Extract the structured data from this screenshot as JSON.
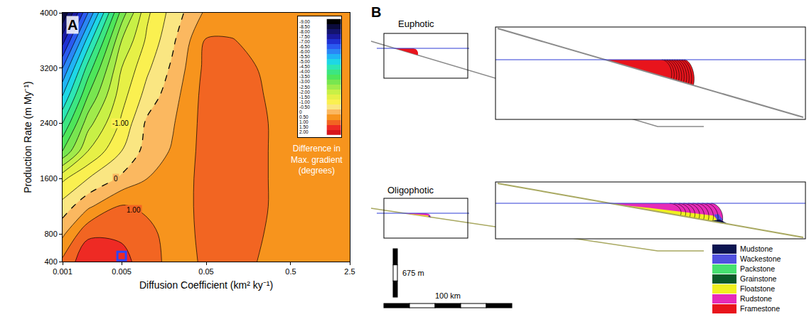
{
  "chart_data": {
    "type": "contour",
    "panel_label": "A",
    "x_label": "Diffusion Coefficient (km² ky⁻¹)",
    "y_label": "Production Rate (m My⁻¹)",
    "log": "x",
    "grid": false,
    "x": [
      0.001,
      0.002,
      0.005,
      0.01,
      0.02,
      0.05,
      0.1,
      0.2,
      0.5,
      1,
      2.5
    ],
    "y": [
      400,
      800,
      1200,
      1600,
      2000,
      2400,
      2800,
      3200,
      3600,
      4000
    ],
    "z": [
      [
        1.1,
        1.9,
        1.7,
        1.2,
        0.85,
        1.05,
        1.2,
        1.0,
        0.8,
        0.8,
        0.8
      ],
      [
        0.4,
        1.4,
        1.4,
        1.15,
        0.8,
        1.1,
        1.25,
        1.05,
        0.8,
        0.8,
        0.8
      ],
      [
        -0.3,
        0.4,
        1.05,
        0.9,
        0.75,
        1.15,
        1.3,
        1.1,
        0.8,
        0.8,
        0.8
      ],
      [
        -1.1,
        -0.5,
        0.1,
        0.5,
        0.65,
        1.2,
        1.3,
        1.1,
        0.8,
        0.8,
        0.8
      ],
      [
        -3.0,
        -1.5,
        -0.5,
        0.2,
        0.55,
        1.2,
        1.3,
        1.1,
        0.8,
        0.8,
        0.8
      ],
      [
        -4.0,
        -2.2,
        -0.9,
        0.1,
        0.45,
        1.2,
        1.3,
        1.1,
        0.8,
        0.8,
        0.8
      ],
      [
        -5.0,
        -3.0,
        -1.2,
        -0.3,
        0.3,
        1.2,
        1.25,
        1.05,
        0.8,
        0.8,
        0.8
      ],
      [
        -6.0,
        -3.8,
        -1.5,
        -0.6,
        0.1,
        1.15,
        1.2,
        1.0,
        0.8,
        0.8,
        0.8
      ],
      [
        -7.2,
        -4.8,
        -2.0,
        -0.9,
        -0.1,
        1.05,
        1.02,
        0.9,
        0.8,
        0.8,
        0.8
      ],
      [
        -8.5,
        -6.0,
        -2.8,
        -1.1,
        -0.3,
        0.6,
        0.8,
        0.8,
        0.8,
        0.8,
        0.8
      ]
    ],
    "xlim": [
      0.001,
      2.5
    ],
    "ylim": [
      400,
      4000
    ],
    "xticks": [
      0.001,
      0.005,
      0.05,
      0.5,
      2.5
    ],
    "yticks": [
      400,
      800,
      1600,
      2400,
      3200,
      4000
    ],
    "colorbar": {
      "title": "Difference in Max. gradient (degrees)",
      "range": [
        -9,
        2
      ],
      "ticks": [
        {
          "value": -9,
          "label": "-9.00"
        },
        {
          "value": -8.5,
          "label": "-8.50"
        },
        {
          "value": -8,
          "label": "-8.00"
        },
        {
          "value": -7.5,
          "label": "-7.50"
        },
        {
          "value": -7,
          "label": "-7.00"
        },
        {
          "value": -6.5,
          "label": "-6.50"
        },
        {
          "value": -6,
          "label": "-6.00"
        },
        {
          "value": -5.5,
          "label": "-5.50"
        },
        {
          "value": -5,
          "label": "-5.00"
        },
        {
          "value": -4.5,
          "label": "-4.50"
        },
        {
          "value": -4,
          "label": "-4.00"
        },
        {
          "value": -3.5,
          "label": "-3.50"
        },
        {
          "value": -3,
          "label": "-3.00"
        },
        {
          "value": -2.5,
          "label": "-2.50"
        },
        {
          "value": -2,
          "label": "-2.00"
        },
        {
          "value": -1.5,
          "label": "-1.50"
        },
        {
          "value": -1,
          "label": "-1.00"
        },
        {
          "value": -0.5,
          "label": "-0.50"
        },
        0,
        {
          "value": 0.5,
          "label": "0.50"
        },
        {
          "value": 1,
          "label": "1.00"
        },
        {
          "value": 1.5,
          "label": "1.50"
        },
        {
          "value": 2,
          "label": "2.00"
        }
      ],
      "colors": [
        "#000000",
        "#0b0b3c",
        "#14146e",
        "#1a1aa0",
        "#1f30d2",
        "#2a5af0",
        "#2a86f5",
        "#20b4f5",
        "#1ed7e6",
        "#2de6b4",
        "#3ce682",
        "#4ee65a",
        "#78e650",
        "#a0eb4b",
        "#c8f046",
        "#e6f046",
        "#faf050",
        "#fae682",
        "#fbb860",
        "#f7941d",
        "#f26522",
        "#ee2a24",
        "#d7141c"
      ]
    },
    "dashed_level": 0,
    "contour_labels": [
      {
        "value": -1,
        "label": "-1.00",
        "x": 0.0048,
        "y": 2400
      },
      {
        "value": 0,
        "x": 0.0043,
        "y": 1600
      },
      {
        "value": 1,
        "label": "1.00",
        "x": 0.007,
        "y": 1150
      }
    ],
    "highlight": {
      "x": 0.005,
      "y": 480,
      "marker": "square-open",
      "color": "#2b45ff"
    }
  },
  "diagram": {
    "panel_label": "B",
    "profiles": [
      {
        "title": "Euphotic",
        "facies": [
          "Framestone"
        ],
        "slope_color": "#8a8a8a"
      },
      {
        "title": "Oligophotic",
        "facies": [
          "Rudstone",
          "Floatstone",
          "Wackestone",
          "Mudstone"
        ],
        "slope_color": "#a8a860"
      }
    ],
    "sea_level_color": "#2e3cd6",
    "scale_bars": {
      "vertical": "675 m",
      "horizontal": "100 km"
    },
    "legend": [
      {
        "name": "Mudstone",
        "color": "#0b1450"
      },
      {
        "name": "Wackestone",
        "color": "#5050e0"
      },
      {
        "name": "Packstone",
        "color": "#46e070"
      },
      {
        "name": "Grainstone",
        "color": "#0a5a28"
      },
      {
        "name": "Floatstone",
        "color": "#f0f020"
      },
      {
        "name": "Rudstone",
        "color": "#e62bb8"
      },
      {
        "name": "Framestone",
        "color": "#e8141c"
      }
    ]
  }
}
